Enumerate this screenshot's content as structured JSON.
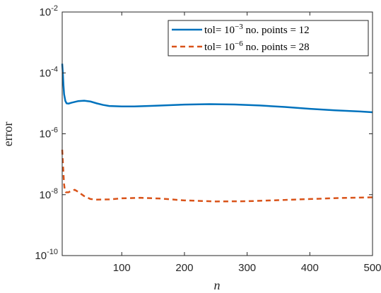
{
  "chart_data": {
    "type": "line",
    "title": "",
    "xlabel": "n",
    "ylabel": "error",
    "xlim": [
      5,
      500
    ],
    "ylim": [
      1e-10,
      0.01
    ],
    "yscale": "log",
    "grid": false,
    "legend_position": "top-right",
    "x_ticks": [
      100,
      200,
      300,
      400,
      500
    ],
    "x_tick_labels": [
      "100",
      "200",
      "300",
      "400",
      "500"
    ],
    "y_ticks": [
      1e-10,
      1e-08,
      1e-06,
      0.0001,
      0.01
    ],
    "y_tick_labels": [
      {
        "base": "10",
        "exp": "-10"
      },
      {
        "base": "10",
        "exp": "-8"
      },
      {
        "base": "10",
        "exp": "-6"
      },
      {
        "base": "10",
        "exp": "-4"
      },
      {
        "base": "10",
        "exp": "-2"
      }
    ],
    "series": [
      {
        "legend": {
          "pre": "tol= 10",
          "exp": "−3",
          "post": " no. points = 12"
        },
        "color": "#0072bd",
        "style": "solid",
        "points": [
          [
            5,
            0.0002
          ],
          [
            6,
            0.0001
          ],
          [
            7,
            4e-05
          ],
          [
            8,
            2e-05
          ],
          [
            10,
            1.2e-05
          ],
          [
            12,
            1e-05
          ],
          [
            15,
            9.8e-06
          ],
          [
            20,
            1.05e-05
          ],
          [
            30,
            1.18e-05
          ],
          [
            40,
            1.22e-05
          ],
          [
            50,
            1.15e-05
          ],
          [
            60,
            1e-05
          ],
          [
            70,
            8.9e-06
          ],
          [
            80,
            8.2e-06
          ],
          [
            100,
            7.9e-06
          ],
          [
            120,
            7.9e-06
          ],
          [
            150,
            8.3e-06
          ],
          [
            200,
            9.1e-06
          ],
          [
            240,
            9.4e-06
          ],
          [
            280,
            9.2e-06
          ],
          [
            320,
            8.5e-06
          ],
          [
            360,
            7.6e-06
          ],
          [
            400,
            6.6e-06
          ],
          [
            440,
            5.9e-06
          ],
          [
            480,
            5.4e-06
          ],
          [
            500,
            5.1e-06
          ]
        ]
      },
      {
        "legend": {
          "pre": "tol= 10",
          "exp": "−6",
          "post": " no. points = 28"
        },
        "color": "#d95319",
        "style": "dashed",
        "points": [
          [
            5,
            3e-07
          ],
          [
            6,
            1.2e-07
          ],
          [
            7,
            5e-08
          ],
          [
            8,
            2.2e-08
          ],
          [
            9,
            1.5e-08
          ],
          [
            11,
            1.2e-08
          ],
          [
            15,
            1.2e-08
          ],
          [
            20,
            1.35e-08
          ],
          [
            25,
            1.45e-08
          ],
          [
            30,
            1.25e-08
          ],
          [
            40,
            9e-09
          ],
          [
            50,
            7.2e-09
          ],
          [
            60,
            6.9e-09
          ],
          [
            80,
            7e-09
          ],
          [
            100,
            7.6e-09
          ],
          [
            130,
            7.9e-09
          ],
          [
            160,
            7.5e-09
          ],
          [
            200,
            6.5e-09
          ],
          [
            250,
            6e-09
          ],
          [
            300,
            6.1e-09
          ],
          [
            350,
            6.6e-09
          ],
          [
            400,
            7.2e-09
          ],
          [
            450,
            7.8e-09
          ],
          [
            500,
            8.2e-09
          ]
        ]
      }
    ]
  }
}
